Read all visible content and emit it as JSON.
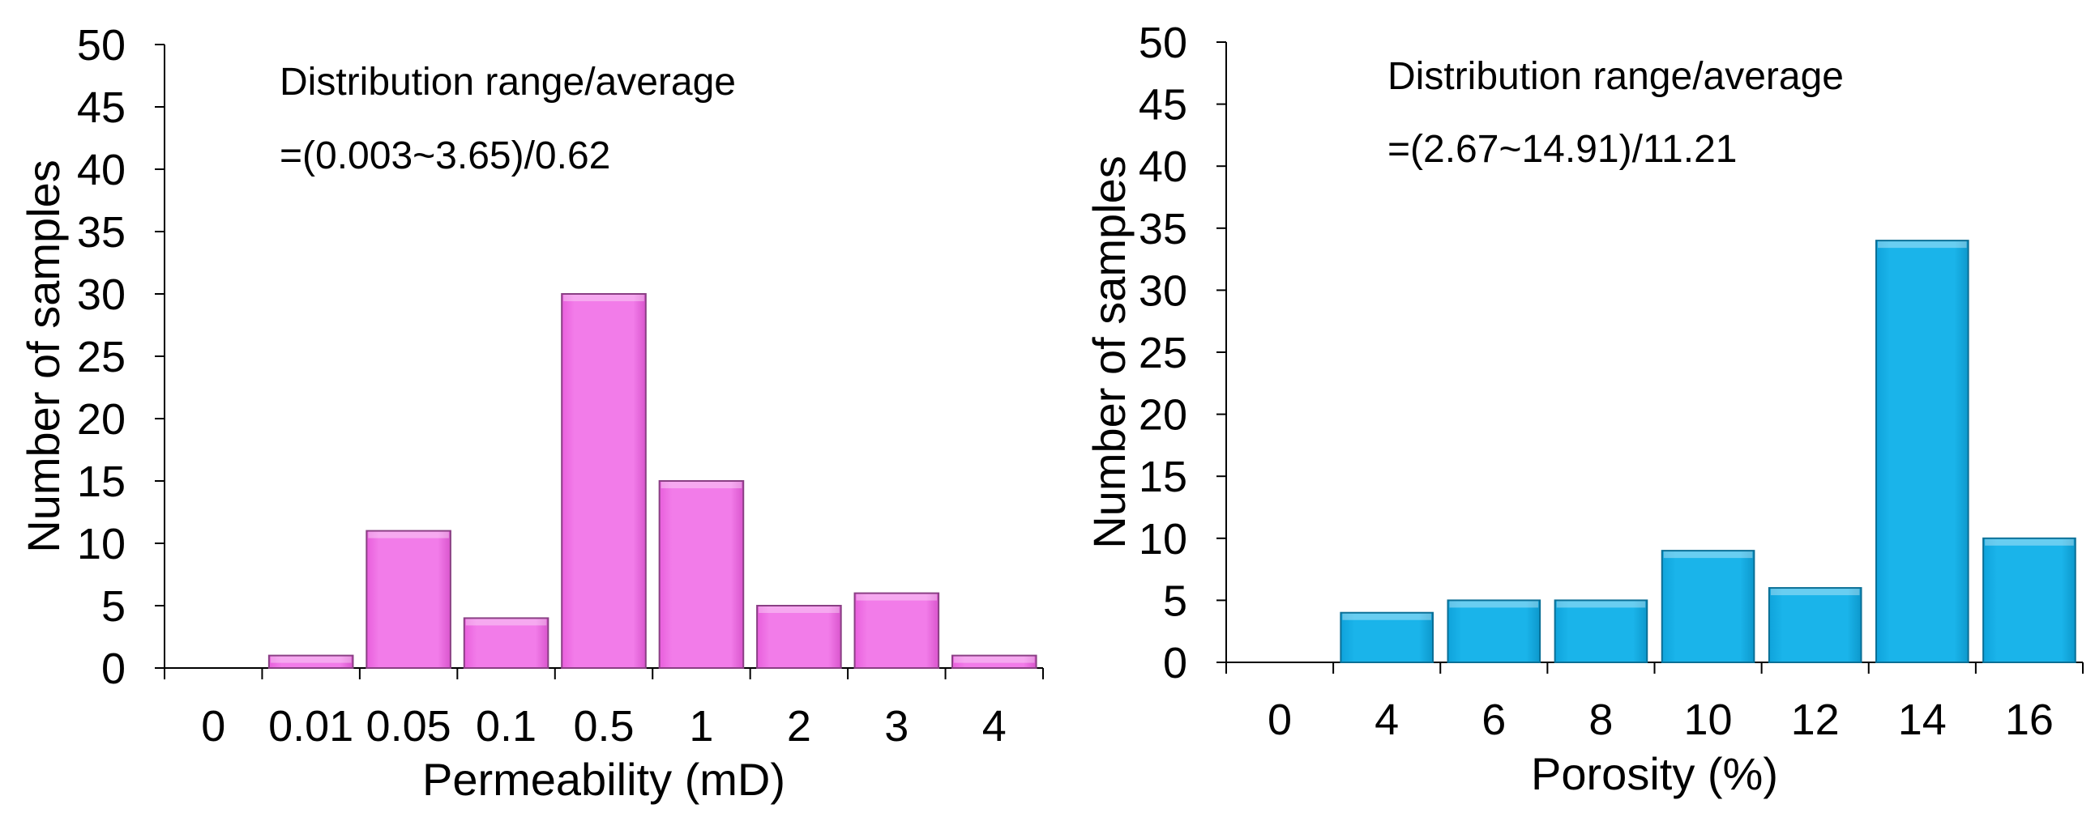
{
  "chart_data": [
    {
      "type": "bar",
      "categories": [
        "0",
        "0.01",
        "0.05",
        "0.1",
        "0.5",
        "1",
        "2",
        "3",
        "4"
      ],
      "values": [
        0,
        1,
        11,
        4,
        30,
        15,
        5,
        6,
        1
      ],
      "xlabel": "Permeability (mD)",
      "ylabel": "Number of samples",
      "ylim": [
        0,
        50
      ],
      "yticks": [
        "0",
        "5",
        "10",
        "15",
        "20",
        "25",
        "30",
        "35",
        "40",
        "45",
        "50"
      ],
      "annotation": [
        "Distribution range/average",
        "=(0.003~3.65)/0.62"
      ],
      "color": "#f27ce9",
      "grid": false
    },
    {
      "type": "bar",
      "categories": [
        "0",
        "4",
        "6",
        "8",
        "10",
        "12",
        "14",
        "16"
      ],
      "values": [
        0,
        4,
        5,
        5,
        9,
        6,
        34,
        10
      ],
      "xlabel": "Porosity (%)",
      "ylabel": "Number of samples",
      "ylim": [
        0,
        50
      ],
      "yticks": [
        "0",
        "5",
        "10",
        "15",
        "20",
        "25",
        "30",
        "35",
        "40",
        "45",
        "50"
      ],
      "annotation": [
        "Distribution range/average",
        "=(2.67~14.91)/11.21"
      ],
      "color": "#1ab4ea",
      "grid": false
    }
  ]
}
